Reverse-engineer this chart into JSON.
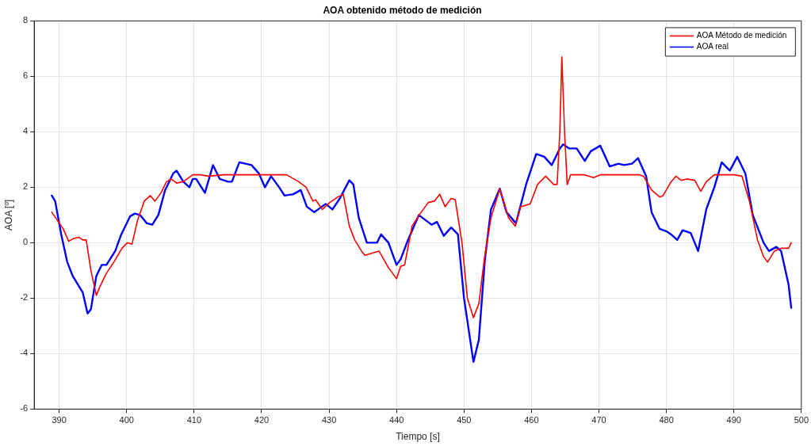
{
  "chart_data": {
    "type": "line",
    "title": "AOA obtenido método de medición",
    "xlabel": "Tiempo [s]",
    "ylabel": "AOA [º]",
    "xlim": [
      386.3,
      500
    ],
    "xticks": [
      390,
      400,
      410,
      420,
      430,
      440,
      450,
      460,
      470,
      480,
      490,
      500
    ],
    "ylim": [
      -6,
      8
    ],
    "yticks": [
      -6,
      -4,
      -2,
      0,
      2,
      4,
      6,
      8
    ],
    "grid": true,
    "legend": "top right",
    "marker": "none",
    "line_style": "solid",
    "series": [
      {
        "name": "AOA Método de medición",
        "color": "#ff0000",
        "x": [
          388.9,
          390.6,
          391.4,
          392.1,
          392.9,
          393.5,
          394.0,
          394.7,
          395.5,
          396.0,
          397.0,
          398.1,
          399.3,
          400.1,
          400.8,
          401.6,
          402.6,
          403.5,
          404.2,
          405.1,
          405.9,
          406.6,
          407.4,
          408.4,
          409.8,
          410.9,
          412.1,
          414.4,
          416.7,
          420.2,
          423.7,
          425.5,
          426.6,
          427.6,
          428.0,
          429.0,
          430.1,
          431.3,
          432.1,
          433.0,
          433.8,
          434.8,
          435.3,
          437.4,
          438.8,
          440.0,
          440.6,
          441.2,
          442.3,
          443.5,
          444.7,
          445.6,
          446.4,
          447.2,
          448.1,
          448.7,
          449.7,
          450.5,
          451.4,
          452.2,
          453.0,
          454.0,
          455.3,
          456.6,
          457.6,
          458.4,
          459.8,
          460.9,
          462.1,
          463.3,
          463.8,
          464.2,
          464.5,
          464.9,
          465.3,
          465.8,
          467.9,
          469.2,
          470.2,
          472.6,
          476.0,
          476.6,
          477.8,
          479.0,
          479.5,
          480.7,
          481.4,
          482.2,
          483.0,
          484.2,
          485.1,
          485.9,
          487.1,
          490.0,
          491.2,
          492.3,
          493.5,
          494.4,
          495.0,
          496.0,
          497.0,
          498.1,
          498.5
        ],
        "values": [
          1.1,
          0.5,
          0.05,
          0.15,
          0.2,
          0.1,
          0.1,
          -1.0,
          -1.9,
          -1.6,
          -1.1,
          -0.7,
          -0.2,
          0.0,
          -0.05,
          0.8,
          1.5,
          1.7,
          1.5,
          1.8,
          2.2,
          2.3,
          2.15,
          2.2,
          2.45,
          2.45,
          2.4,
          2.45,
          2.45,
          2.45,
          2.45,
          2.2,
          2.0,
          1.5,
          1.55,
          1.2,
          1.45,
          1.65,
          1.75,
          0.6,
          0.1,
          -0.3,
          -0.45,
          -0.3,
          -0.9,
          -1.3,
          -0.85,
          -0.8,
          0.6,
          1.05,
          1.45,
          1.5,
          1.75,
          1.3,
          1.6,
          1.55,
          0.0,
          -2.0,
          -2.7,
          -2.2,
          -0.6,
          0.9,
          1.95,
          0.9,
          0.6,
          1.3,
          1.4,
          2.1,
          2.4,
          2.1,
          2.1,
          4.0,
          6.7,
          4.0,
          2.1,
          2.45,
          2.45,
          2.35,
          2.45,
          2.45,
          2.45,
          2.4,
          1.9,
          1.65,
          1.7,
          2.2,
          2.4,
          2.25,
          2.3,
          2.25,
          1.85,
          2.2,
          2.45,
          2.45,
          2.4,
          1.5,
          0.1,
          -0.5,
          -0.7,
          -0.3,
          -0.2,
          -0.2,
          0.0
        ]
      },
      {
        "name": "AOA real",
        "color": "#0000ff",
        "x": [
          388.9,
          389.4,
          390.3,
          391.2,
          392.0,
          393.0,
          393.5,
          394.2,
          394.7,
          395.5,
          396.3,
          397.0,
          398.3,
          399.2,
          400.5,
          401.2,
          402.0,
          403.0,
          403.8,
          404.7,
          405.7,
          406.9,
          407.4,
          408.4,
          409.3,
          409.8,
          410.3,
          411.6,
          412.8,
          413.8,
          415.0,
          415.6,
          416.7,
          418.5,
          419.6,
          420.5,
          421.4,
          422.6,
          423.4,
          424.7,
          425.8,
          426.7,
          427.8,
          429.5,
          430.5,
          431.6,
          433.0,
          433.6,
          434.4,
          435.6,
          437.1,
          437.7,
          438.8,
          440.0,
          440.6,
          441.7,
          443.3,
          444.1,
          445.2,
          446.0,
          447.0,
          448.1,
          449.1,
          450.0,
          451.4,
          452.2,
          453.1,
          454.0,
          455.3,
          456.3,
          457.7,
          459.2,
          460.7,
          461.9,
          463.0,
          464.2,
          464.7,
          465.6,
          466.7,
          467.9,
          468.8,
          470.2,
          471.6,
          472.9,
          473.7,
          474.9,
          475.8,
          477.0,
          477.8,
          479.0,
          480.1,
          480.7,
          481.6,
          482.4,
          483.6,
          484.7,
          485.9,
          487.1,
          488.2,
          489.4,
          490.5,
          491.7,
          492.8,
          494.4,
          495.2,
          496.3,
          497.0,
          498.1,
          498.5
        ],
        "values": [
          1.7,
          1.5,
          0.3,
          -0.7,
          -1.2,
          -1.6,
          -1.8,
          -2.55,
          -2.4,
          -1.2,
          -0.8,
          -0.8,
          -0.3,
          0.3,
          0.95,
          1.05,
          1.0,
          0.7,
          0.65,
          1.0,
          1.9,
          2.5,
          2.6,
          2.2,
          2.0,
          2.3,
          2.3,
          1.8,
          2.8,
          2.3,
          2.2,
          2.2,
          2.9,
          2.8,
          2.5,
          2.0,
          2.4,
          2.0,
          1.7,
          1.75,
          1.9,
          1.3,
          1.1,
          1.4,
          1.2,
          1.6,
          2.25,
          2.1,
          0.9,
          0.0,
          0.0,
          0.3,
          0.0,
          -0.8,
          -0.6,
          0.1,
          1.0,
          0.85,
          0.65,
          0.75,
          0.25,
          0.55,
          0.3,
          -2.0,
          -4.3,
          -3.5,
          -0.6,
          1.2,
          1.95,
          1.1,
          0.7,
          2.1,
          3.2,
          3.1,
          2.8,
          3.4,
          3.55,
          3.4,
          3.4,
          2.95,
          3.3,
          3.5,
          2.75,
          2.85,
          2.8,
          2.85,
          3.05,
          2.4,
          1.1,
          0.5,
          0.4,
          0.3,
          0.1,
          0.45,
          0.35,
          -0.3,
          1.2,
          2.0,
          2.9,
          2.6,
          3.1,
          2.5,
          1.0,
          0.0,
          -0.3,
          -0.15,
          -0.3,
          -1.5,
          -2.35
        ]
      }
    ]
  }
}
